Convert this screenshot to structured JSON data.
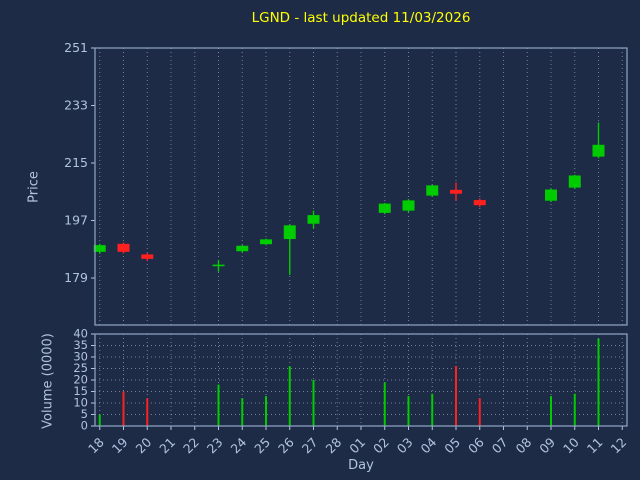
{
  "colors": {
    "background": "#1e2b47",
    "title": "#ffff00",
    "axis_text": "#b0c4de",
    "spine": "#8fa8c8",
    "grid": "#9aa8bd",
    "up": "#00cc00",
    "down": "#ff2020"
  },
  "chart_data": {
    "type": "candlestick+volume",
    "title": "LGND - last updated 11/03/2026",
    "xlabel": "Day",
    "legend": "none",
    "grid": "vertical dotted in both panels; horizontal dotted in volume panel",
    "price_axis": {
      "label": "Price",
      "ticks": [
        251,
        233,
        215,
        197,
        179
      ],
      "ylim": [
        164.3,
        251
      ]
    },
    "volume_axis": {
      "label": "Volume (0000)",
      "ticks": [
        40,
        35,
        30,
        25,
        20,
        15,
        10,
        5,
        0
      ],
      "ylim": [
        0,
        40
      ]
    },
    "categories": [
      "18",
      "19",
      "20",
      "21",
      "22",
      "23",
      "24",
      "25",
      "26",
      "27",
      "28",
      "01",
      "02",
      "03",
      "04",
      "05",
      "06",
      "07",
      "08",
      "09",
      "10",
      "11",
      "12"
    ],
    "candles": [
      {
        "day": "18",
        "open": 187.2,
        "high": 189.7,
        "low": 186.6,
        "close": 189.3,
        "volume": 5
      },
      {
        "day": "19",
        "open": 189.7,
        "high": 190.1,
        "low": 186.7,
        "close": 187.2,
        "volume": 15
      },
      {
        "day": "20",
        "open": 186.4,
        "high": 186.8,
        "low": 184.4,
        "close": 185.0,
        "volume": 12
      },
      {
        "day": "23",
        "open": 183.0,
        "high": 184.6,
        "low": 181.0,
        "close": 183.2,
        "volume": 18
      },
      {
        "day": "24",
        "open": 187.4,
        "high": 189.3,
        "low": 187.0,
        "close": 189.1,
        "volume": 12
      },
      {
        "day": "25",
        "open": 189.6,
        "high": 191.3,
        "low": 189.3,
        "close": 191.1,
        "volume": 13
      },
      {
        "day": "26",
        "open": 191.2,
        "high": 195.7,
        "low": 180.0,
        "close": 195.5,
        "volume": 26
      },
      {
        "day": "27",
        "open": 196.0,
        "high": 200.1,
        "low": 194.5,
        "close": 198.7,
        "volume": 20
      },
      {
        "day": "02",
        "open": 199.4,
        "high": 202.5,
        "low": 199.0,
        "close": 202.3,
        "volume": 19
      },
      {
        "day": "03",
        "open": 200.1,
        "high": 203.7,
        "low": 199.6,
        "close": 203.3,
        "volume": 13
      },
      {
        "day": "04",
        "open": 204.8,
        "high": 208.2,
        "low": 204.4,
        "close": 208.0,
        "volume": 14
      },
      {
        "day": "05",
        "open": 206.6,
        "high": 208.9,
        "low": 203.3,
        "close": 205.4,
        "volume": 26
      },
      {
        "day": "06",
        "open": 203.4,
        "high": 203.9,
        "low": 201.2,
        "close": 201.8,
        "volume": 12
      },
      {
        "day": "09",
        "open": 203.2,
        "high": 207.0,
        "low": 202.8,
        "close": 206.7,
        "volume": 13
      },
      {
        "day": "10",
        "open": 207.3,
        "high": 211.3,
        "low": 207.0,
        "close": 211.1,
        "volume": 14
      },
      {
        "day": "11",
        "open": 217.0,
        "high": 227.7,
        "low": 216.5,
        "close": 220.7,
        "volume": 38
      }
    ]
  }
}
